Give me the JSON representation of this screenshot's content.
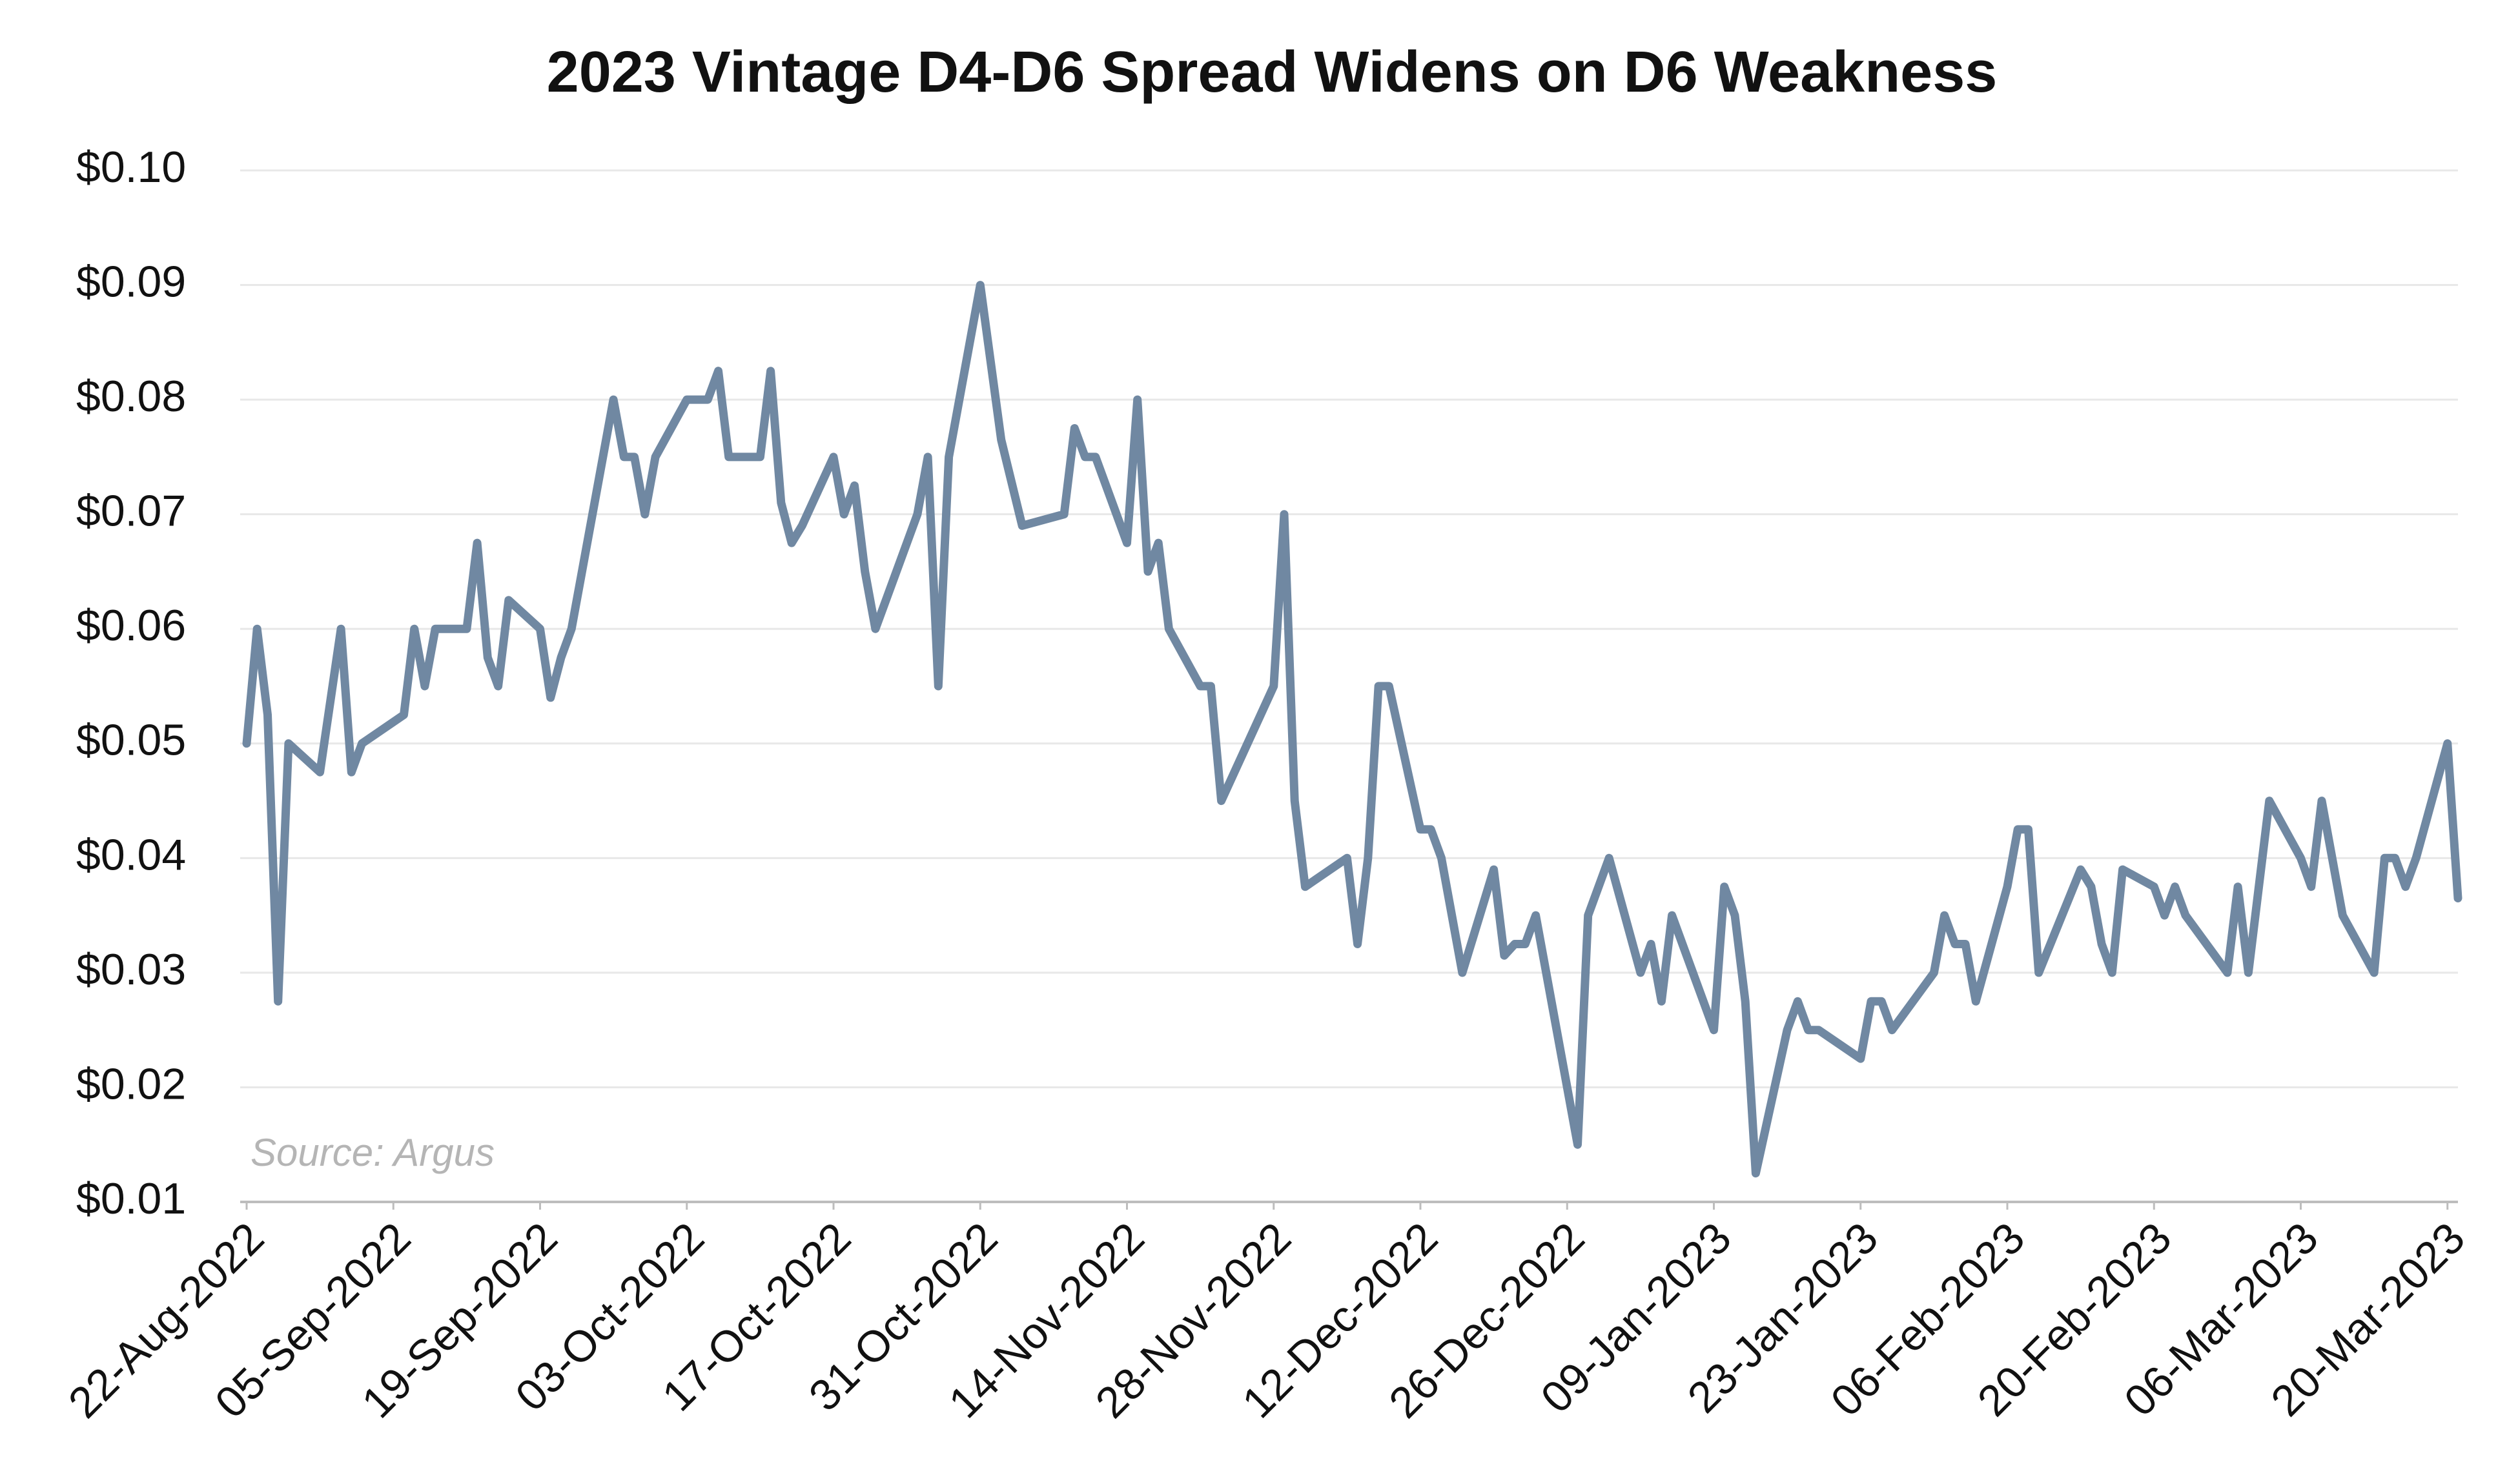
{
  "chart_data": {
    "type": "line",
    "title": "2023 Vintage D4-D6 Spread Widens on D6 Weakness",
    "annotation": "Source: Argus",
    "xlim": [
      "22-Aug-2022",
      "21-Mar-2023"
    ],
    "xticks": [
      "22-Aug-2022",
      "05-Sep-2022",
      "19-Sep-2022",
      "03-Oct-2022",
      "17-Oct-2022",
      "31-Oct-2022",
      "14-Nov-2022",
      "28-Nov-2022",
      "12-Dec-2022",
      "26-Dec-2022",
      "09-Jan-2023",
      "23-Jan-2023",
      "06-Feb-2023",
      "20-Feb-2023",
      "06-Mar-2023",
      "20-Mar-2023"
    ],
    "ylim": [
      0.01,
      0.1
    ],
    "yticks": [
      {
        "value": 0.01,
        "label": "$0.01"
      },
      {
        "value": 0.02,
        "label": "$0.02"
      },
      {
        "value": 0.03,
        "label": "$0.03"
      },
      {
        "value": 0.04,
        "label": "$0.04"
      },
      {
        "value": 0.05,
        "label": "$0.05"
      },
      {
        "value": 0.06,
        "label": "$0.06"
      },
      {
        "value": 0.07,
        "label": "$0.07"
      },
      {
        "value": 0.08,
        "label": "$0.08"
      },
      {
        "value": 0.09,
        "label": "$0.09"
      },
      {
        "value": 0.1,
        "label": "$0.10"
      }
    ],
    "grid": true,
    "x": [
      "22-Aug-2022",
      "23-Aug-2022",
      "24-Aug-2022",
      "25-Aug-2022",
      "26-Aug-2022",
      "29-Aug-2022",
      "31-Aug-2022",
      "01-Sep-2022",
      "02-Sep-2022",
      "06-Sep-2022",
      "07-Sep-2022",
      "08-Sep-2022",
      "09-Sep-2022",
      "12-Sep-2022",
      "13-Sep-2022",
      "14-Sep-2022",
      "15-Sep-2022",
      "16-Sep-2022",
      "19-Sep-2022",
      "20-Sep-2022",
      "21-Sep-2022",
      "22-Sep-2022",
      "26-Sep-2022",
      "27-Sep-2022",
      "28-Sep-2022",
      "29-Sep-2022",
      "30-Sep-2022",
      "03-Oct-2022",
      "05-Oct-2022",
      "06-Oct-2022",
      "07-Oct-2022",
      "10-Oct-2022",
      "11-Oct-2022",
      "12-Oct-2022",
      "13-Oct-2022",
      "14-Oct-2022",
      "17-Oct-2022",
      "18-Oct-2022",
      "19-Oct-2022",
      "20-Oct-2022",
      "21-Oct-2022",
      "25-Oct-2022",
      "26-Oct-2022",
      "27-Oct-2022",
      "28-Oct-2022",
      "31-Oct-2022",
      "02-Nov-2022",
      "04-Nov-2022",
      "08-Nov-2022",
      "09-Nov-2022",
      "10-Nov-2022",
      "11-Nov-2022",
      "14-Nov-2022",
      "15-Nov-2022",
      "16-Nov-2022",
      "17-Nov-2022",
      "18-Nov-2022",
      "21-Nov-2022",
      "22-Nov-2022",
      "23-Nov-2022",
      "28-Nov-2022",
      "29-Nov-2022",
      "30-Nov-2022",
      "01-Dec-2022",
      "05-Dec-2022",
      "06-Dec-2022",
      "07-Dec-2022",
      "08-Dec-2022",
      "09-Dec-2022",
      "12-Dec-2022",
      "13-Dec-2022",
      "14-Dec-2022",
      "16-Dec-2022",
      "19-Dec-2022",
      "20-Dec-2022",
      "21-Dec-2022",
      "22-Dec-2022",
      "23-Dec-2022",
      "27-Dec-2022",
      "28-Dec-2022",
      "30-Dec-2022",
      "02-Jan-2023",
      "03-Jan-2023",
      "04-Jan-2023",
      "05-Jan-2023",
      "09-Jan-2023",
      "10-Jan-2023",
      "11-Jan-2023",
      "12-Jan-2023",
      "13-Jan-2023",
      "16-Jan-2023",
      "17-Jan-2023",
      "18-Jan-2023",
      "19-Jan-2023",
      "23-Jan-2023",
      "24-Jan-2023",
      "25-Jan-2023",
      "26-Jan-2023",
      "30-Jan-2023",
      "31-Jan-2023",
      "01-Feb-2023",
      "02-Feb-2023",
      "03-Feb-2023",
      "06-Feb-2023",
      "07-Feb-2023",
      "08-Feb-2023",
      "09-Feb-2023",
      "13-Feb-2023",
      "14-Feb-2023",
      "15-Feb-2023",
      "16-Feb-2023",
      "17-Feb-2023",
      "20-Feb-2023",
      "21-Feb-2023",
      "22-Feb-2023",
      "23-Feb-2023",
      "27-Feb-2023",
      "28-Feb-2023",
      "01-Mar-2023",
      "03-Mar-2023",
      "06-Mar-2023",
      "07-Mar-2023",
      "08-Mar-2023",
      "10-Mar-2023",
      "13-Mar-2023",
      "14-Mar-2023",
      "15-Mar-2023",
      "16-Mar-2023",
      "17-Mar-2023",
      "20-Mar-2023",
      "21-Mar-2023"
    ],
    "series": [
      {
        "color": "#7088a2",
        "values": [
          0.05,
          0.06,
          0.0525,
          0.0275,
          0.05,
          0.0475,
          0.06,
          0.0475,
          0.05,
          0.0525,
          0.06,
          0.055,
          0.06,
          0.06,
          0.0675,
          0.0575,
          0.055,
          0.0625,
          0.06,
          0.054,
          0.0575,
          0.06,
          0.08,
          0.075,
          0.075,
          0.07,
          0.075,
          0.08,
          0.08,
          0.0825,
          0.075,
          0.075,
          0.0825,
          0.071,
          0.0675,
          0.069,
          0.075,
          0.07,
          0.0725,
          0.065,
          0.06,
          0.07,
          0.075,
          0.055,
          0.075,
          0.09,
          0.0765,
          0.069,
          0.07,
          0.0775,
          0.075,
          0.075,
          0.0675,
          0.08,
          0.065,
          0.0675,
          0.06,
          0.055,
          0.055,
          0.045,
          0.055,
          0.07,
          0.045,
          0.0375,
          0.04,
          0.0325,
          0.04,
          0.055,
          0.055,
          0.0425,
          0.0425,
          0.04,
          0.03,
          0.039,
          0.0315,
          0.0325,
          0.0325,
          0.035,
          0.015,
          0.035,
          0.04,
          0.03,
          0.0325,
          0.0275,
          0.035,
          0.025,
          0.0375,
          0.035,
          0.0275,
          0.0125,
          0.025,
          0.0275,
          0.025,
          0.025,
          0.0225,
          0.0275,
          0.0275,
          0.025,
          0.03,
          0.035,
          0.0325,
          0.0325,
          0.0275,
          0.0375,
          0.0425,
          0.0425,
          0.03,
          0.039,
          0.0375,
          0.0325,
          0.03,
          0.039,
          0.0375,
          0.035,
          0.0375,
          0.035,
          0.03,
          0.0375,
          0.03,
          0.045,
          0.04,
          0.0375,
          0.045,
          0.035,
          0.03,
          0.04,
          0.04,
          0.0375,
          0.04,
          0.05,
          0.0365
        ]
      }
    ]
  }
}
